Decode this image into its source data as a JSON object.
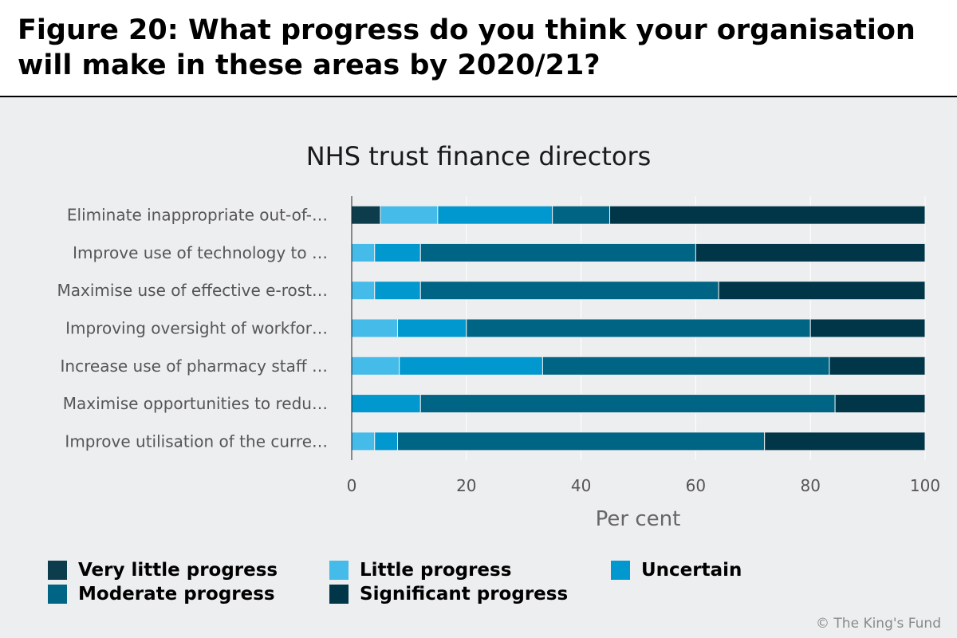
{
  "figure_title": "Figure 20: What progress do you think your organisation will make in these areas by 2020/21?",
  "credit": "© The King's Fund",
  "colors": {
    "very_little": "#0d3d4c",
    "little": "#44bbe9",
    "uncertain": "#0098cf",
    "moderate": "#006484",
    "significant": "#003648"
  },
  "chart_data": {
    "type": "bar",
    "orientation": "horizontal",
    "stacked": true,
    "title": "NHS trust finance directors",
    "xlabel": "Per cent",
    "ylabel": "",
    "xlim": [
      0,
      100
    ],
    "x_ticks": [
      0,
      20,
      40,
      60,
      80,
      100
    ],
    "grid": true,
    "legend_position": "bottom",
    "categories": [
      "Eliminate inappropriate out-of-…",
      "Improve use of technology to …",
      "Maximise use of effective e-rost…",
      "Improving oversight of workfor…",
      "Increase use of pharmacy staff …",
      "Maximise opportunities to redu…",
      "Improve utilisation of the curre…"
    ],
    "series": [
      {
        "name": "Very little progress",
        "color": "#0d3d4c",
        "values": [
          5,
          0,
          0,
          0,
          0,
          0,
          0
        ]
      },
      {
        "name": "Little progress",
        "color": "#44bbe9",
        "values": [
          10,
          4,
          4,
          8,
          8.3,
          0,
          4
        ]
      },
      {
        "name": "Uncertain",
        "color": "#0098cf",
        "values": [
          20,
          8,
          8,
          12,
          25,
          12,
          4
        ]
      },
      {
        "name": "Moderate progress",
        "color": "#006484",
        "values": [
          10,
          48,
          52,
          60,
          50,
          72.3,
          64
        ]
      },
      {
        "name": "Significant progress",
        "color": "#003648",
        "values": [
          55,
          40,
          36,
          20,
          16.7,
          15.7,
          28
        ]
      }
    ]
  }
}
